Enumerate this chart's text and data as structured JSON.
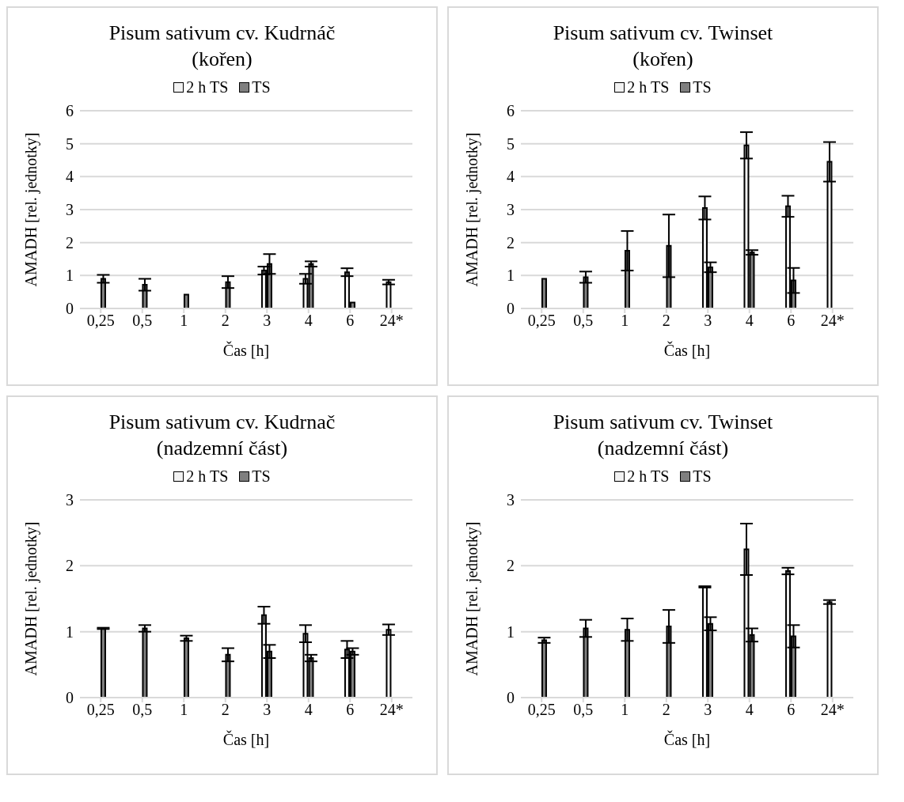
{
  "chart_data": [
    {
      "type": "bar",
      "title": "Pisum sativum cv. Kudrnáč\n(kořen)",
      "xlabel": "Čas [h]",
      "ylabel": "AMADH [rel. jednotky]",
      "categories": [
        "0,25",
        "0,5",
        "1",
        "2",
        "3",
        "4",
        "6",
        "24*"
      ],
      "ylim": [
        0,
        6
      ],
      "yticks": [
        0,
        1,
        2,
        3,
        4,
        5,
        6
      ],
      "grid": "y",
      "legend": "top",
      "series": [
        {
          "name": "2 h TS",
          "color": "#f2f2f2",
          "values": [
            null,
            null,
            null,
            null,
            1.15,
            0.9,
            1.1,
            0.8
          ],
          "errors": [
            null,
            null,
            null,
            null,
            0.12,
            0.15,
            0.12,
            0.07
          ]
        },
        {
          "name": "TS",
          "color": "#7f7f7f",
          "values": [
            0.9,
            0.72,
            0.42,
            0.8,
            1.35,
            1.35,
            0.18,
            null
          ],
          "errors": [
            0.12,
            0.18,
            null,
            0.18,
            0.3,
            0.08,
            null,
            null
          ]
        }
      ]
    },
    {
      "type": "bar",
      "title": "Pisum sativum cv. Twinset\n(kořen)",
      "xlabel": "Čas [h]",
      "ylabel": "AMADH [rel. jednotky]",
      "categories": [
        "0,25",
        "0,5",
        "1",
        "2",
        "3",
        "4",
        "6",
        "24*"
      ],
      "ylim": [
        0,
        6
      ],
      "yticks": [
        0,
        1,
        2,
        3,
        4,
        5,
        6
      ],
      "grid": "y",
      "legend": "top",
      "series": [
        {
          "name": "2 h TS",
          "color": "#f2f2f2",
          "values": [
            null,
            null,
            null,
            null,
            3.05,
            4.95,
            3.1,
            4.45
          ],
          "errors": [
            null,
            null,
            null,
            null,
            0.35,
            0.4,
            0.32,
            0.6
          ]
        },
        {
          "name": "TS",
          "color": "#7f7f7f",
          "values": [
            0.9,
            0.95,
            1.75,
            1.9,
            1.25,
            1.7,
            0.85,
            null
          ],
          "errors": [
            null,
            0.17,
            0.6,
            0.95,
            0.15,
            0.07,
            0.38,
            null
          ]
        }
      ]
    },
    {
      "type": "bar",
      "title": "Pisum sativum cv. Kudrnač\n(nadzemní část)",
      "xlabel": "Čas [h]",
      "ylabel": "AMADH [rel. jednotky]",
      "categories": [
        "0,25",
        "0,5",
        "1",
        "2",
        "3",
        "4",
        "6",
        "24*"
      ],
      "ylim": [
        0,
        3
      ],
      "yticks": [
        0,
        1,
        2,
        3
      ],
      "grid": "y",
      "legend": "top",
      "series": [
        {
          "name": "2 h TS",
          "color": "#f2f2f2",
          "values": [
            null,
            null,
            null,
            null,
            1.25,
            0.97,
            0.73,
            1.03
          ],
          "errors": [
            null,
            null,
            null,
            null,
            0.13,
            0.13,
            0.13,
            0.08
          ]
        },
        {
          "name": "TS",
          "color": "#7f7f7f",
          "values": [
            1.05,
            1.05,
            0.9,
            0.65,
            0.7,
            0.6,
            0.7,
            null
          ],
          "errors": [
            0.01,
            0.05,
            0.04,
            0.1,
            0.1,
            0.05,
            0.05,
            null
          ]
        }
      ]
    },
    {
      "type": "bar",
      "title": "Pisum sativum cv. Twinset\n(nadzemní část)",
      "xlabel": "Čas [h]",
      "ylabel": "AMADH [rel. jednotky]",
      "categories": [
        "0,25",
        "0,5",
        "1",
        "2",
        "3",
        "4",
        "6",
        "24*"
      ],
      "ylim": [
        0,
        3
      ],
      "yticks": [
        0,
        1,
        2,
        3
      ],
      "grid": "y",
      "legend": "top",
      "series": [
        {
          "name": "2 h TS",
          "color": "#f2f2f2",
          "values": [
            null,
            null,
            null,
            null,
            1.68,
            2.25,
            1.92,
            1.45
          ],
          "errors": [
            null,
            null,
            null,
            null,
            0.01,
            0.39,
            0.05,
            0.03
          ]
        },
        {
          "name": "TS",
          "color": "#7f7f7f",
          "values": [
            0.87,
            1.05,
            1.03,
            1.08,
            1.12,
            0.95,
            0.93,
            null
          ],
          "errors": [
            0.04,
            0.13,
            0.17,
            0.25,
            0.1,
            0.1,
            0.17,
            null
          ]
        }
      ]
    }
  ]
}
